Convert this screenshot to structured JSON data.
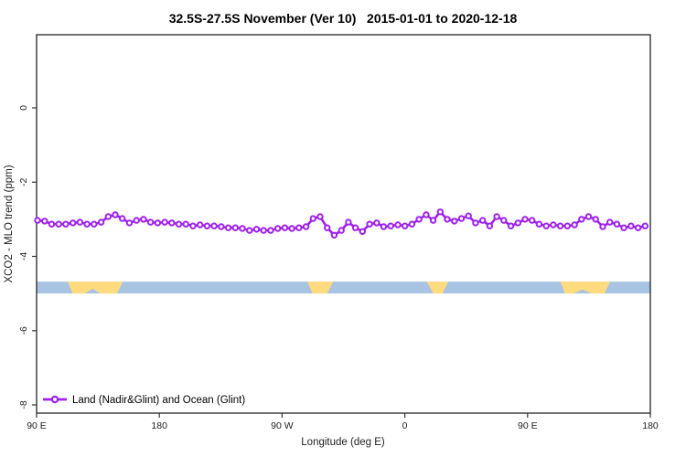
{
  "chart_data": {
    "type": "line",
    "title": "32.5S-27.5S November (Ver 10)   2015-01-01 to 2020-12-18",
    "xlabel": "Longitude (deg E)",
    "ylabel": "XCO2 - MLO trend (ppm)",
    "grid": "off",
    "x_axis": {
      "range_deg": [
        90,
        540
      ],
      "ticks": [
        {
          "deg": 90,
          "label": "90 E"
        },
        {
          "deg": 180,
          "label": "180"
        },
        {
          "deg": 270,
          "label": "90 W"
        },
        {
          "deg": 360,
          "label": "0"
        },
        {
          "deg": 450,
          "label": "90 E"
        },
        {
          "deg": 540,
          "label": "180"
        }
      ]
    },
    "y_axis": {
      "range": [
        -8.2,
        2.0
      ],
      "ticks": [
        0,
        -2,
        -4,
        -6,
        -8
      ]
    },
    "series": [
      {
        "name": "Land (Nadir&Glint) and Ocean (Glint)",
        "color": "#A020F0",
        "marker": "open-circle",
        "x_start_deg": 90.7,
        "x_step_deg": 5.18,
        "values": [
          -3.03,
          -3.05,
          -3.13,
          -3.13,
          -3.13,
          -3.1,
          -3.08,
          -3.13,
          -3.13,
          -3.08,
          -2.93,
          -2.88,
          -2.98,
          -3.1,
          -3.03,
          -3.0,
          -3.08,
          -3.1,
          -3.08,
          -3.1,
          -3.13,
          -3.13,
          -3.18,
          -3.15,
          -3.18,
          -3.18,
          -3.2,
          -3.23,
          -3.23,
          -3.25,
          -3.3,
          -3.27,
          -3.3,
          -3.3,
          -3.25,
          -3.23,
          -3.25,
          -3.23,
          -3.2,
          -2.98,
          -2.93,
          -3.23,
          -3.43,
          -3.3,
          -3.08,
          -3.23,
          -3.33,
          -3.13,
          -3.1,
          -3.2,
          -3.18,
          -3.15,
          -3.18,
          -3.13,
          -3.0,
          -2.88,
          -3.03,
          -2.8,
          -3.0,
          -3.05,
          -2.98,
          -2.91,
          -3.1,
          -3.03,
          -3.18,
          -2.93,
          -3.03,
          -3.18,
          -3.1,
          -3.0,
          -3.03,
          -3.13,
          -3.18,
          -3.15,
          -3.18,
          -3.18,
          -3.15,
          -3.0,
          -2.93,
          -3.0,
          -3.2,
          -3.08,
          -3.13,
          -3.23,
          -3.18,
          -3.23,
          -3.18
        ]
      }
    ],
    "surface_band": {
      "description": "land-ocean indicator strip",
      "y_range_ppm": [
        -4.68,
        -5.0
      ],
      "ocean_color": "#A9C4E2",
      "land_color": "#FFDB7E",
      "land_polygons": [
        [
          [
            112.8,
            0
          ],
          [
            153.2,
            0
          ],
          [
            149,
            1
          ],
          [
            137,
            1
          ],
          [
            131,
            0.6
          ],
          [
            125.5,
            1
          ],
          [
            116.5,
            1
          ]
        ],
        [
          [
            288.5,
            0
          ],
          [
            307.5,
            0
          ],
          [
            303,
            1
          ],
          [
            292.5,
            1
          ]
        ],
        [
          [
            376,
            0
          ],
          [
            392,
            0
          ],
          [
            387.5,
            1
          ],
          [
            381,
            1
          ]
        ],
        [
          [
            474,
            0
          ],
          [
            510.5,
            0
          ],
          [
            506.5,
            1
          ],
          [
            497,
            1
          ],
          [
            490,
            0.65
          ],
          [
            484,
            1
          ],
          [
            477.5,
            1
          ]
        ]
      ]
    },
    "legend": {
      "label": "Land (Nadir&Glint) and Ocean (Glint)",
      "position": "bottom-left"
    }
  }
}
